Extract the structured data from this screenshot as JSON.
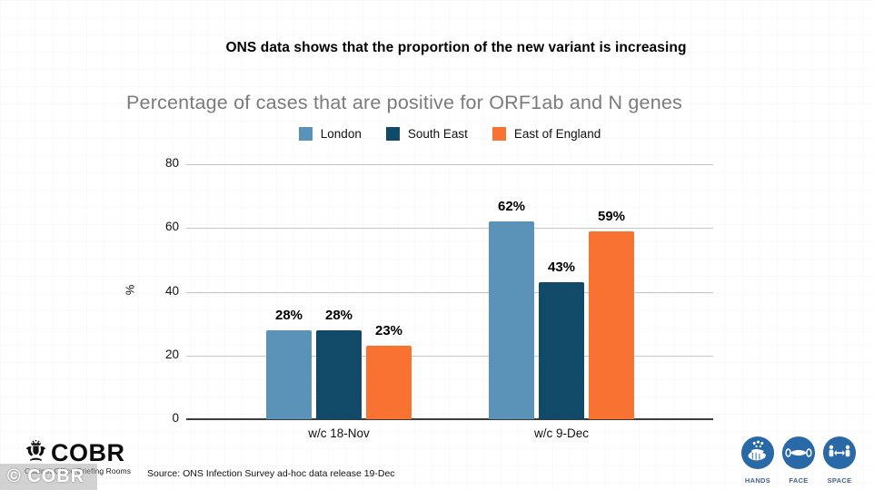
{
  "page": {
    "slide_title": "ONS data shows that the proportion of the new variant is increasing",
    "source_note": "Source: ONS Infection Survey ad-hoc data release 19-Dec",
    "watermark": "© COBR"
  },
  "logo": {
    "name": "COBR",
    "subtitle": "Cabinet Office Briefing Rooms"
  },
  "campaign": {
    "circle_color": "#2a69a7",
    "label_color": "#47618c",
    "items": [
      {
        "label": "HANDS",
        "icon": "hands-washing-icon"
      },
      {
        "label": "FACE",
        "icon": "face-mask-icon"
      },
      {
        "label": "SPACE",
        "icon": "social-distance-icon"
      }
    ]
  },
  "chart_data": {
    "type": "bar",
    "title": "Percentage of cases that are positive for ORF1ab and N genes",
    "categories": [
      "w/c 18-Nov",
      "w/c 9-Dec"
    ],
    "series": [
      {
        "name": "London",
        "color": "#5b93b8",
        "values": [
          28,
          62
        ]
      },
      {
        "name": "South East",
        "color": "#114a68",
        "values": [
          28,
          43
        ]
      },
      {
        "name": "East of England",
        "color": "#f87231",
        "values": [
          23,
          59
        ]
      }
    ],
    "xlabel": "",
    "ylabel": "%",
    "ylim": [
      0,
      80
    ],
    "yticks": [
      0,
      20,
      40,
      60,
      80
    ],
    "value_suffix": "%",
    "grid": true,
    "legend_position": "top",
    "gridline_color": "#c6c6c6",
    "axis_color": "#3b3b3b"
  }
}
